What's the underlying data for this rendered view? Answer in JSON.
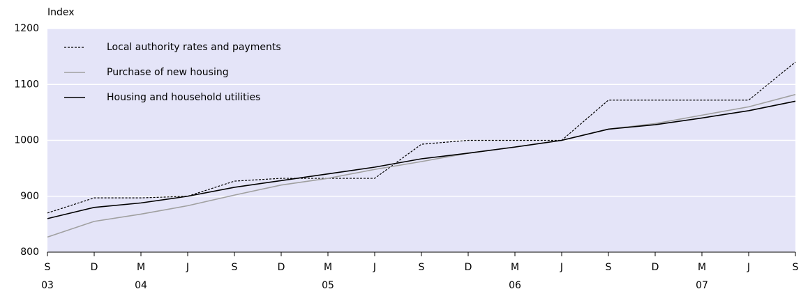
{
  "chart_data": {
    "type": "line",
    "y_label": "Index",
    "categories": [
      "S",
      "D",
      "M",
      "J",
      "S",
      "D",
      "M",
      "J",
      "S",
      "D",
      "M",
      "J",
      "S",
      "D",
      "M",
      "J",
      "S"
    ],
    "year_labels": [
      "03",
      null,
      "04",
      null,
      null,
      null,
      "05",
      null,
      null,
      null,
      "06",
      null,
      null,
      null,
      "07",
      null,
      null
    ],
    "series": [
      {
        "name": "Local authority rates and payments",
        "color": "#000000",
        "dash": "3,2",
        "values": [
          870,
          897,
          897,
          900,
          927,
          932,
          932,
          932,
          993,
          1000,
          1000,
          1000,
          1072,
          1072,
          1072,
          1072,
          1140
        ]
      },
      {
        "name": "Purchase of new housing",
        "color": "#a0a0a0",
        "values": [
          827,
          855,
          868,
          883,
          902,
          920,
          932,
          948,
          962,
          977,
          988,
          1000,
          1020,
          1030,
          1045,
          1060,
          1082
        ]
      },
      {
        "name": "Housing and household utilities",
        "color": "#000000",
        "values": [
          860,
          880,
          888,
          900,
          916,
          928,
          940,
          952,
          967,
          977,
          988,
          1000,
          1020,
          1028,
          1040,
          1053,
          1070
        ]
      }
    ],
    "ylim": [
      800,
      1200
    ],
    "yticks": [
      800,
      900,
      1000,
      1100,
      1200
    ],
    "grid": true,
    "legend": "upper-left"
  }
}
